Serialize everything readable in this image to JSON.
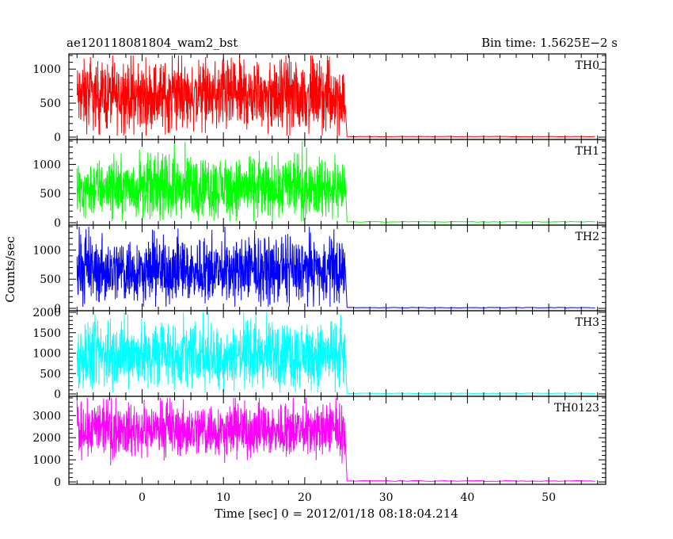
{
  "chart_data": {
    "type": "line",
    "title_left": "ae120118081804_wam2_bst",
    "title_right": "Bin time: 1.5625E−2 s",
    "xlabel": "Time [sec] 0 = 2012/01/18 08:18:04.214",
    "ylabel": "Counts/sec",
    "xlim": [
      -9,
      57
    ],
    "x_ticks": [
      0,
      10,
      20,
      30,
      40,
      50
    ],
    "x_tick_labels": [
      "0",
      "10",
      "20",
      "30",
      "40",
      "50"
    ],
    "grid": false,
    "burst": {
      "start": -8,
      "end": 25,
      "post_end": 56
    },
    "series": [
      {
        "name": "TH0",
        "color": "#ff0000",
        "ylim": [
          0,
          1200
        ],
        "y_ticks": [
          0,
          500,
          1000
        ],
        "y_tick_labels": [
          "0",
          "500",
          "1000"
        ],
        "mean_during_burst": 600,
        "spread": 550,
        "mean_after_burst": 8
      },
      {
        "name": "TH1",
        "color": "#00ff00",
        "ylim": [
          0,
          1400
        ],
        "y_ticks": [
          0,
          500,
          1000
        ],
        "y_tick_labels": [
          "0",
          "500",
          "1000"
        ],
        "mean_during_burst": 600,
        "spread": 550,
        "mean_after_burst": 15
      },
      {
        "name": "TH2",
        "color": "#0000ff",
        "ylim": [
          0,
          1400
        ],
        "y_ticks": [
          0,
          500,
          1000
        ],
        "y_tick_labels": [
          "0",
          "500",
          "1000"
        ],
        "mean_during_burst": 650,
        "spread": 600,
        "mean_after_burst": 12
      },
      {
        "name": "TH3",
        "color": "#00ffff",
        "ylim": [
          0,
          2000
        ],
        "y_ticks": [
          0,
          500,
          1000,
          1500,
          2000
        ],
        "y_tick_labels": [
          "0",
          "500",
          "1000",
          "1500",
          "2000"
        ],
        "mean_during_burst": 950,
        "spread": 850,
        "mean_after_burst": 15
      },
      {
        "name": "TH0123",
        "color": "#ff00ff",
        "ylim": [
          0,
          3800
        ],
        "y_ticks": [
          0,
          1000,
          2000,
          3000
        ],
        "y_tick_labels": [
          "0",
          "1000",
          "2000",
          "3000"
        ],
        "mean_during_burst": 2350,
        "spread": 1300,
        "mean_after_burst": 40
      }
    ]
  }
}
